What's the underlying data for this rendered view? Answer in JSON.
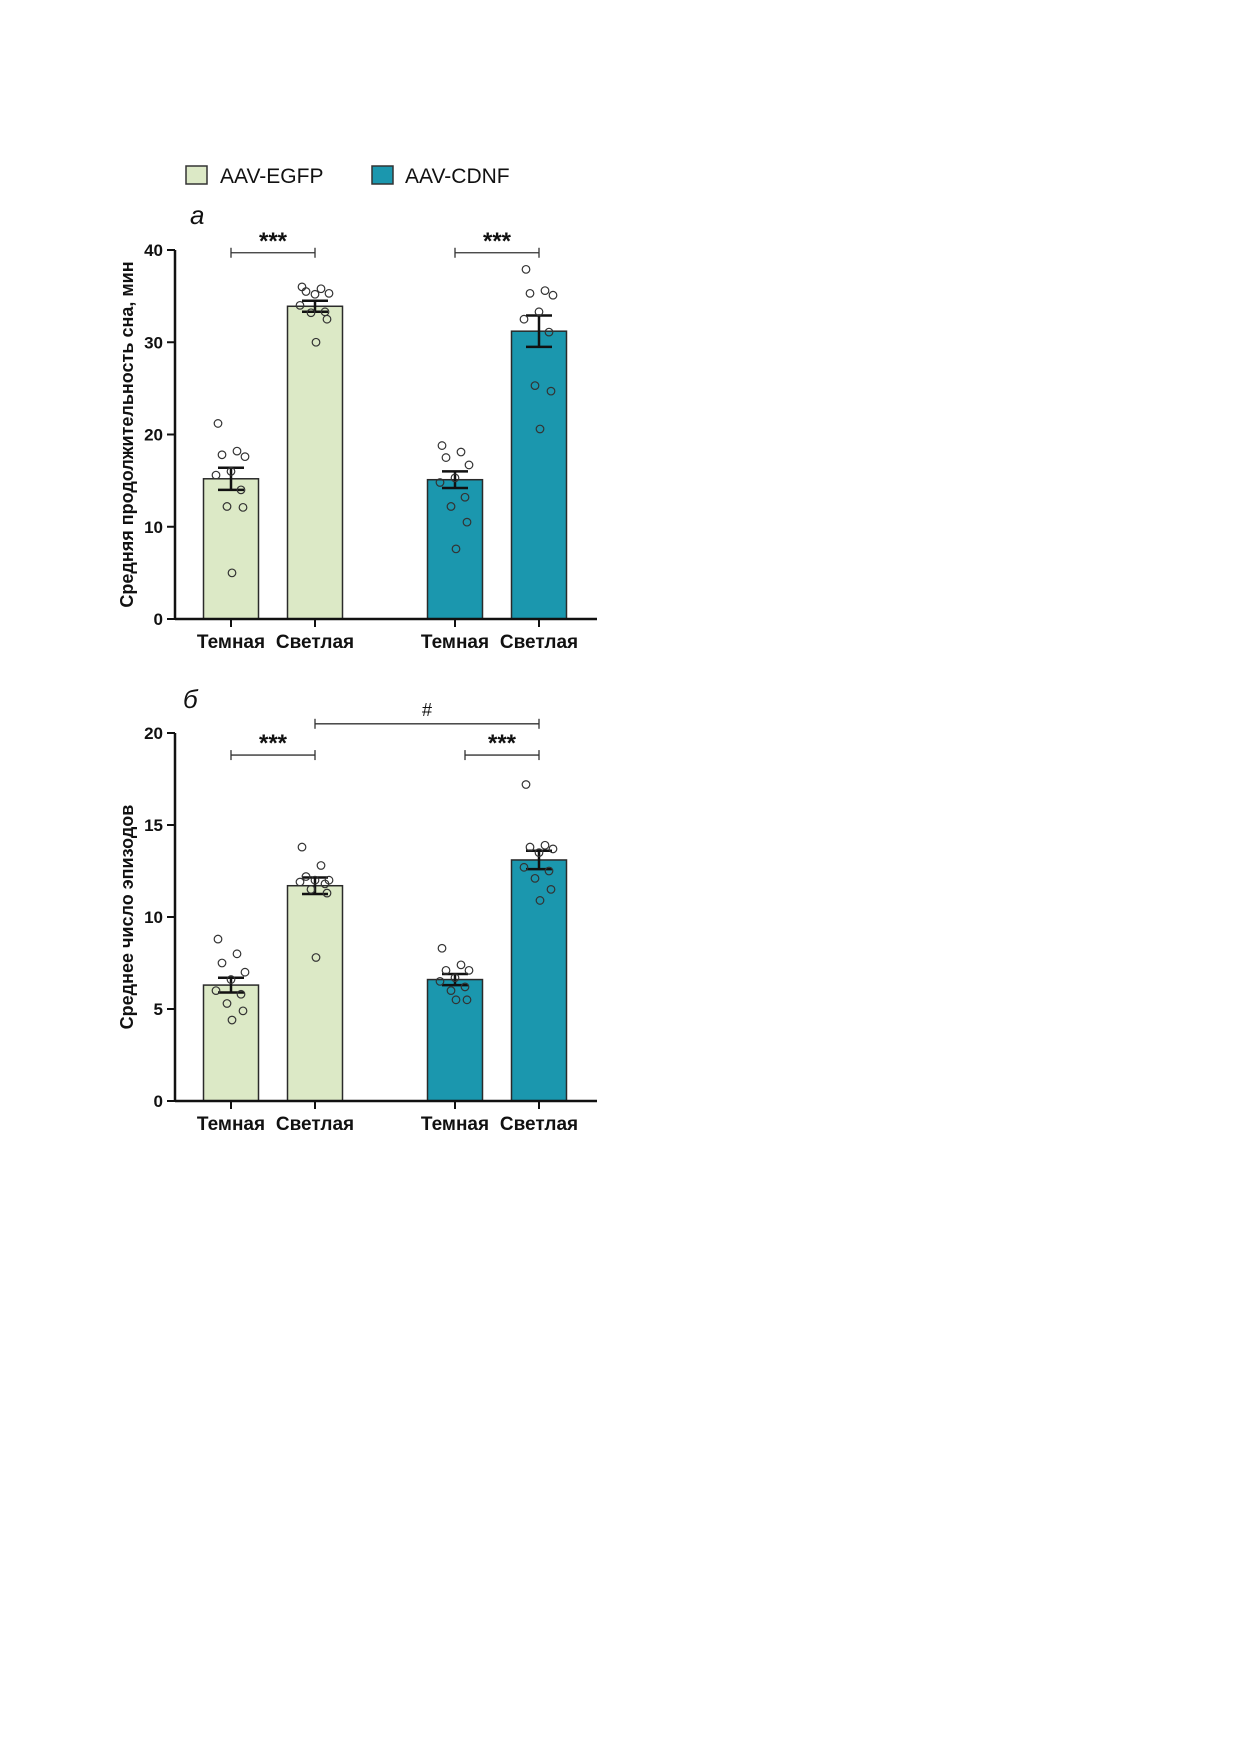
{
  "legend": [
    {
      "label": "AAV-EGFP",
      "color": "#dce9c6"
    },
    {
      "label": "AAV-CDNF",
      "color": "#1b97ae"
    }
  ],
  "chart_data": [
    {
      "panel": "а",
      "type": "bar",
      "ylabel": "Средняя продолжительность сна, мин",
      "ylim": [
        0,
        40
      ],
      "yticks": [
        0,
        10,
        20,
        30,
        40
      ],
      "categories": [
        "Темная",
        "Светлая",
        "Темная",
        "Светлая"
      ],
      "bars": [
        {
          "series": "AAV-EGFP",
          "category": "Темная",
          "value": 15.2,
          "sem": 1.2,
          "points": [
            21.2,
            18.2,
            17.8,
            17.6,
            16.0,
            15.6,
            14.0,
            12.2,
            12.1,
            5.0
          ]
        },
        {
          "series": "AAV-EGFP",
          "category": "Светлая",
          "value": 33.9,
          "sem": 0.6,
          "points": [
            36.0,
            35.8,
            35.5,
            35.3,
            35.2,
            34.0,
            33.3,
            33.2,
            32.5,
            30.0
          ]
        },
        {
          "series": "AAV-CDNF",
          "category": "Темная",
          "value": 15.1,
          "sem": 0.9,
          "points": [
            18.8,
            18.1,
            17.5,
            16.7,
            15.3,
            14.8,
            13.2,
            12.2,
            10.5,
            7.6
          ]
        },
        {
          "series": "AAV-CDNF",
          "category": "Светлая",
          "value": 31.2,
          "sem": 1.7,
          "points": [
            37.9,
            35.6,
            35.3,
            35.1,
            33.3,
            32.5,
            31.1,
            25.3,
            24.7,
            20.6
          ]
        }
      ],
      "significance": [
        {
          "from": 0,
          "to": 1,
          "label": "***",
          "y": 39.7
        },
        {
          "from": 2,
          "to": 3,
          "label": "***",
          "y": 39.7
        }
      ]
    },
    {
      "panel": "б",
      "type": "bar",
      "ylabel": "Среднее число эпизодов",
      "ylim": [
        0,
        20
      ],
      "yticks": [
        0,
        5,
        10,
        15,
        20
      ],
      "categories": [
        "Темная",
        "Светлая",
        "Темная",
        "Светлая"
      ],
      "bars": [
        {
          "series": "AAV-EGFP",
          "category": "Темная",
          "value": 6.3,
          "sem": 0.4,
          "points": [
            8.8,
            8.0,
            7.5,
            7.0,
            6.6,
            6.0,
            5.8,
            5.3,
            4.9,
            4.4
          ]
        },
        {
          "series": "AAV-EGFP",
          "category": "Светлая",
          "value": 11.7,
          "sem": 0.45,
          "points": [
            13.8,
            12.8,
            12.2,
            12.0,
            12.0,
            11.9,
            11.8,
            11.5,
            11.3,
            7.8
          ]
        },
        {
          "series": "AAV-CDNF",
          "category": "Темная",
          "value": 6.6,
          "sem": 0.3,
          "points": [
            8.3,
            7.4,
            7.1,
            7.1,
            6.7,
            6.5,
            6.2,
            6.0,
            5.5,
            5.5
          ]
        },
        {
          "series": "AAV-CDNF",
          "category": "Светлая",
          "value": 13.1,
          "sem": 0.5,
          "points": [
            17.2,
            13.9,
            13.8,
            13.7,
            13.5,
            12.7,
            12.5,
            12.1,
            11.5,
            10.9
          ]
        }
      ],
      "significance": [
        {
          "from": 0,
          "to": 1,
          "label": "***",
          "y": 18.8
        },
        {
          "from": 2,
          "to": 3,
          "label": "***",
          "y": 18.8,
          "xstart_offset": 10
        },
        {
          "from": 1,
          "to": 3,
          "label": "#",
          "y": 20.5
        }
      ]
    }
  ]
}
